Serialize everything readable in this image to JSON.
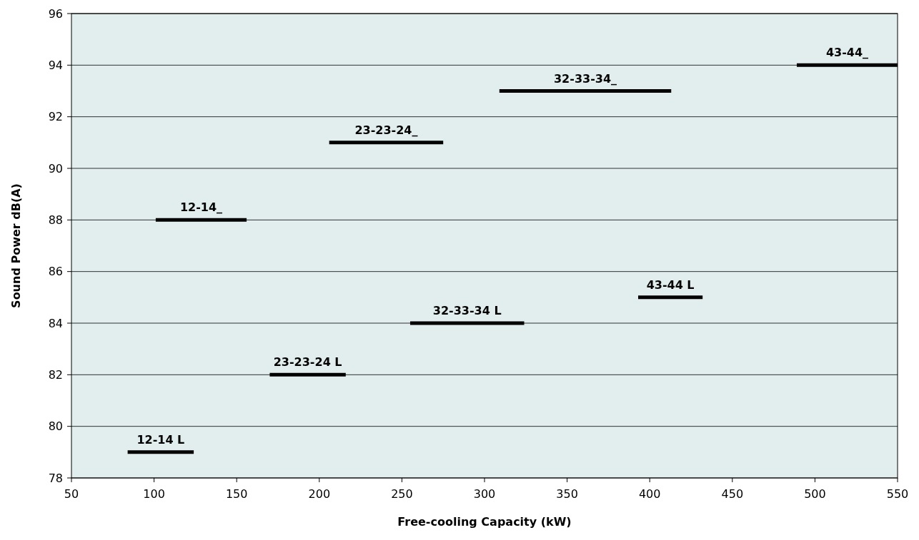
{
  "chart_data": {
    "type": "line",
    "xlabel": "Free-cooling Capacity (kW)",
    "ylabel": "Sound Power dB(A)",
    "xlim": [
      50,
      550
    ],
    "xticks": [
      50,
      100,
      150,
      200,
      250,
      300,
      350,
      400,
      450,
      500,
      550
    ],
    "ylim": [
      78,
      96
    ],
    "yticks": [
      78,
      80,
      82,
      84,
      86,
      88,
      90,
      92,
      94,
      96
    ],
    "grid": "y",
    "marker": "none",
    "line_style": "solid",
    "series": [
      {
        "name": "12-14 L",
        "color": "#000000",
        "x": [
          84,
          124
        ],
        "values": [
          79,
          79
        ]
      },
      {
        "name": "12-14_",
        "color": "#000000",
        "x": [
          101,
          156
        ],
        "values": [
          88,
          88
        ]
      },
      {
        "name": "23-23-24 L",
        "color": "#000000",
        "x": [
          170,
          216
        ],
        "values": [
          82,
          82
        ]
      },
      {
        "name": "23-23-24_",
        "color": "#000000",
        "x": [
          206,
          275
        ],
        "values": [
          91,
          91
        ]
      },
      {
        "name": "32-33-34 L",
        "color": "#000000",
        "x": [
          255,
          324
        ],
        "values": [
          84,
          84
        ]
      },
      {
        "name": "32-33-34_",
        "color": "#000000",
        "x": [
          309,
          413
        ],
        "values": [
          93,
          93
        ]
      },
      {
        "name": "43-44 L",
        "color": "#000000",
        "x": [
          393,
          432
        ],
        "values": [
          85,
          85
        ]
      },
      {
        "name": "43-44_",
        "color": "#000000",
        "x": [
          489,
          550
        ],
        "values": [
          94,
          94
        ]
      }
    ]
  }
}
